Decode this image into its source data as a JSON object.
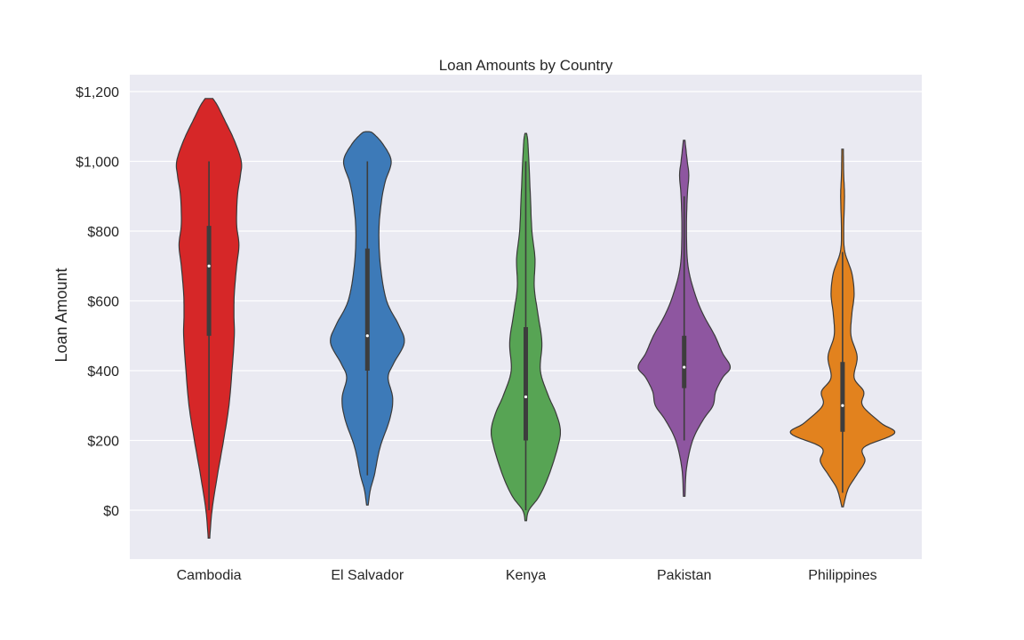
{
  "chart_data": {
    "type": "violin",
    "title": "Loan Amounts by Country",
    "xlabel": "",
    "ylabel": "Loan Amount",
    "ylim": [
      -140,
      1200
    ],
    "yticks": [
      0,
      200,
      400,
      600,
      800,
      1000,
      1200
    ],
    "ytick_labels": [
      "$0",
      "$200",
      "$400",
      "$600",
      "$800",
      "$1,000",
      "$1,200"
    ],
    "grid": true,
    "categories": [
      "Cambodia",
      "El Salvador",
      "Kenya",
      "Pakistan",
      "Philippines"
    ],
    "colors": [
      "#d62728",
      "#3d7ab8",
      "#57a454",
      "#8e56a0",
      "#e2821e"
    ],
    "series": [
      {
        "name": "Cambodia",
        "min": -80,
        "max": 1180,
        "q1": 500,
        "median": 700,
        "q3": 815,
        "whisker_low": 0,
        "whisker_high": 1000,
        "profile": [
          [
            -80,
            0.02
          ],
          [
            0,
            0.08
          ],
          [
            100,
            0.22
          ],
          [
            200,
            0.38
          ],
          [
            300,
            0.52
          ],
          [
            400,
            0.6
          ],
          [
            500,
            0.66
          ],
          [
            560,
            0.65
          ],
          [
            620,
            0.66
          ],
          [
            700,
            0.72
          ],
          [
            760,
            0.78
          ],
          [
            820,
            0.72
          ],
          [
            900,
            0.74
          ],
          [
            960,
            0.82
          ],
          [
            1000,
            0.84
          ],
          [
            1060,
            0.66
          ],
          [
            1120,
            0.4
          ],
          [
            1160,
            0.22
          ],
          [
            1180,
            0.1
          ]
        ]
      },
      {
        "name": "El Salvador",
        "min": 15,
        "max": 1085,
        "q1": 400,
        "median": 500,
        "q3": 750,
        "whisker_low": 100,
        "whisker_high": 1000,
        "profile": [
          [
            15,
            0.02
          ],
          [
            60,
            0.08
          ],
          [
            100,
            0.18
          ],
          [
            180,
            0.33
          ],
          [
            260,
            0.58
          ],
          [
            320,
            0.66
          ],
          [
            380,
            0.54
          ],
          [
            420,
            0.68
          ],
          [
            480,
            0.96
          ],
          [
            530,
            0.82
          ],
          [
            600,
            0.5
          ],
          [
            700,
            0.34
          ],
          [
            800,
            0.3
          ],
          [
            880,
            0.36
          ],
          [
            940,
            0.46
          ],
          [
            1000,
            0.62
          ],
          [
            1050,
            0.4
          ],
          [
            1080,
            0.15
          ],
          [
            1085,
            0.05
          ]
        ]
      },
      {
        "name": "Kenya",
        "min": -30,
        "max": 1080,
        "q1": 200,
        "median": 325,
        "q3": 525,
        "whisker_low": 0,
        "whisker_high": 1000,
        "profile": [
          [
            -30,
            0.02
          ],
          [
            0,
            0.08
          ],
          [
            40,
            0.35
          ],
          [
            100,
            0.6
          ],
          [
            180,
            0.83
          ],
          [
            230,
            0.9
          ],
          [
            280,
            0.78
          ],
          [
            330,
            0.58
          ],
          [
            400,
            0.38
          ],
          [
            480,
            0.42
          ],
          [
            560,
            0.32
          ],
          [
            640,
            0.22
          ],
          [
            720,
            0.24
          ],
          [
            800,
            0.16
          ],
          [
            900,
            0.12
          ],
          [
            1000,
            0.08
          ],
          [
            1060,
            0.05
          ],
          [
            1080,
            0.02
          ]
        ]
      },
      {
        "name": "Pakistan",
        "min": 40,
        "max": 1060,
        "q1": 350,
        "median": 410,
        "q3": 500,
        "whisker_low": 200,
        "whisker_high": 900,
        "profile": [
          [
            40,
            0.02
          ],
          [
            120,
            0.06
          ],
          [
            200,
            0.22
          ],
          [
            260,
            0.5
          ],
          [
            300,
            0.75
          ],
          [
            340,
            0.82
          ],
          [
            380,
            1.0
          ],
          [
            410,
            1.2
          ],
          [
            450,
            1.0
          ],
          [
            500,
            0.8
          ],
          [
            560,
            0.5
          ],
          [
            620,
            0.28
          ],
          [
            700,
            0.1
          ],
          [
            800,
            0.06
          ],
          [
            900,
            0.08
          ],
          [
            960,
            0.12
          ],
          [
            1000,
            0.08
          ],
          [
            1060,
            0.02
          ]
        ]
      },
      {
        "name": "Philippines",
        "min": 10,
        "max": 1035,
        "q1": 225,
        "median": 300,
        "q3": 425,
        "whisker_low": 50,
        "whisker_high": 740,
        "profile": [
          [
            10,
            0.02
          ],
          [
            60,
            0.14
          ],
          [
            100,
            0.36
          ],
          [
            140,
            0.58
          ],
          [
            180,
            0.55
          ],
          [
            220,
            1.35
          ],
          [
            250,
            1.0
          ],
          [
            300,
            0.52
          ],
          [
            340,
            0.55
          ],
          [
            380,
            0.3
          ],
          [
            440,
            0.38
          ],
          [
            500,
            0.22
          ],
          [
            560,
            0.24
          ],
          [
            620,
            0.3
          ],
          [
            680,
            0.24
          ],
          [
            740,
            0.06
          ],
          [
            800,
            0.03
          ],
          [
            900,
            0.05
          ],
          [
            960,
            0.03
          ],
          [
            1035,
            0.02
          ]
        ]
      }
    ]
  }
}
